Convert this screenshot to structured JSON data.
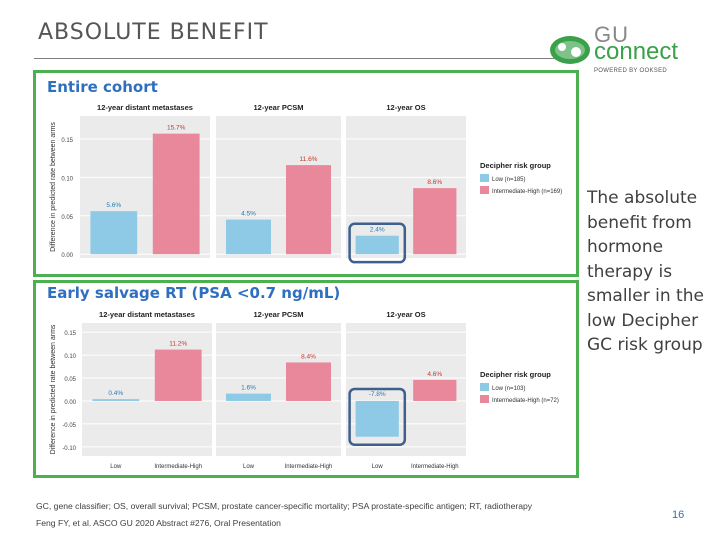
{
  "slide": {
    "title": "ABSOLUTE BENEFIT",
    "side_note": "The absolute benefit from hormone therapy is smaller in the low Decipher GC risk group",
    "footnote_line1": "GC, gene classifier; OS, overall survival; PCSM, prostate cancer-specific mortality; PSA prostate-specific antigen; RT, radiotherapy",
    "footnote_line2": "Feng FY, et al. ASCO GU 2020 Abstract #276, Oral Presentation",
    "page_number": "16"
  },
  "logo": {
    "gu": "GU",
    "connect": "connect",
    "powered": "POWERED BY OOKSED"
  },
  "colors": {
    "low": "#8ecae6",
    "high": "#e8889a",
    "frame": "#4caf50",
    "highlight": "#3f5f8f"
  },
  "chart_data": [
    {
      "type": "bar",
      "title": "Entire cohort",
      "ylabel": "Difference in predicted rate between arms",
      "ylim": [
        -0.005,
        0.18
      ],
      "yticks": [
        "0.00",
        "0.05",
        "0.10",
        "0.15"
      ],
      "ytick_values": [
        0.0,
        0.05,
        0.1,
        0.15
      ],
      "show_category_labels": false,
      "legend": {
        "title": "Decipher risk group",
        "position": "right",
        "entries": [
          "Low (n=185)",
          "Intermediate-High (n=169)"
        ]
      },
      "panels": [
        {
          "title": "12-year distant metastases",
          "categories": [
            "Low",
            "Intermediate-High"
          ],
          "values": [
            0.056,
            0.157
          ],
          "labels": [
            "5.6%",
            "15.7%"
          ]
        },
        {
          "title": "12-year PCSM",
          "categories": [
            "Low",
            "Intermediate-High"
          ],
          "values": [
            0.045,
            0.116
          ],
          "labels": [
            "4.5%",
            "11.6%"
          ]
        },
        {
          "title": "12-year OS",
          "categories": [
            "Low",
            "Intermediate-High"
          ],
          "values": [
            0.024,
            0.086
          ],
          "labels": [
            "2.4%",
            "8.6%"
          ]
        }
      ]
    },
    {
      "type": "bar",
      "title": "Early salvage RT (PSA <0.7 ng/mL)",
      "ylabel": "Difference in predicted rate between arms",
      "ylim": [
        -0.12,
        0.17
      ],
      "yticks": [
        "-0.10",
        "-0.05",
        "0.00",
        "0.05",
        "0.10",
        "0.15"
      ],
      "ytick_values": [
        -0.1,
        -0.05,
        0.0,
        0.05,
        0.1,
        0.15
      ],
      "show_category_labels": true,
      "legend": {
        "title": "Decipher risk group",
        "position": "right",
        "entries": [
          "Low (n=103)",
          "Intermediate-High (n=72)"
        ]
      },
      "panels": [
        {
          "title": "12-year distant metastases",
          "categories": [
            "Low",
            "Intermediate-High"
          ],
          "values": [
            0.004,
            0.112
          ],
          "labels": [
            "0.4%",
            "11.2%"
          ]
        },
        {
          "title": "12-year PCSM",
          "categories": [
            "Low",
            "Intermediate-High"
          ],
          "values": [
            0.016,
            0.084
          ],
          "labels": [
            "1.6%",
            "8.4%"
          ]
        },
        {
          "title": "12-year OS",
          "categories": [
            "Low",
            "Intermediate-High"
          ],
          "values": [
            -0.078,
            0.046
          ],
          "labels": [
            "-7.8%",
            "4.6%"
          ]
        }
      ]
    }
  ]
}
